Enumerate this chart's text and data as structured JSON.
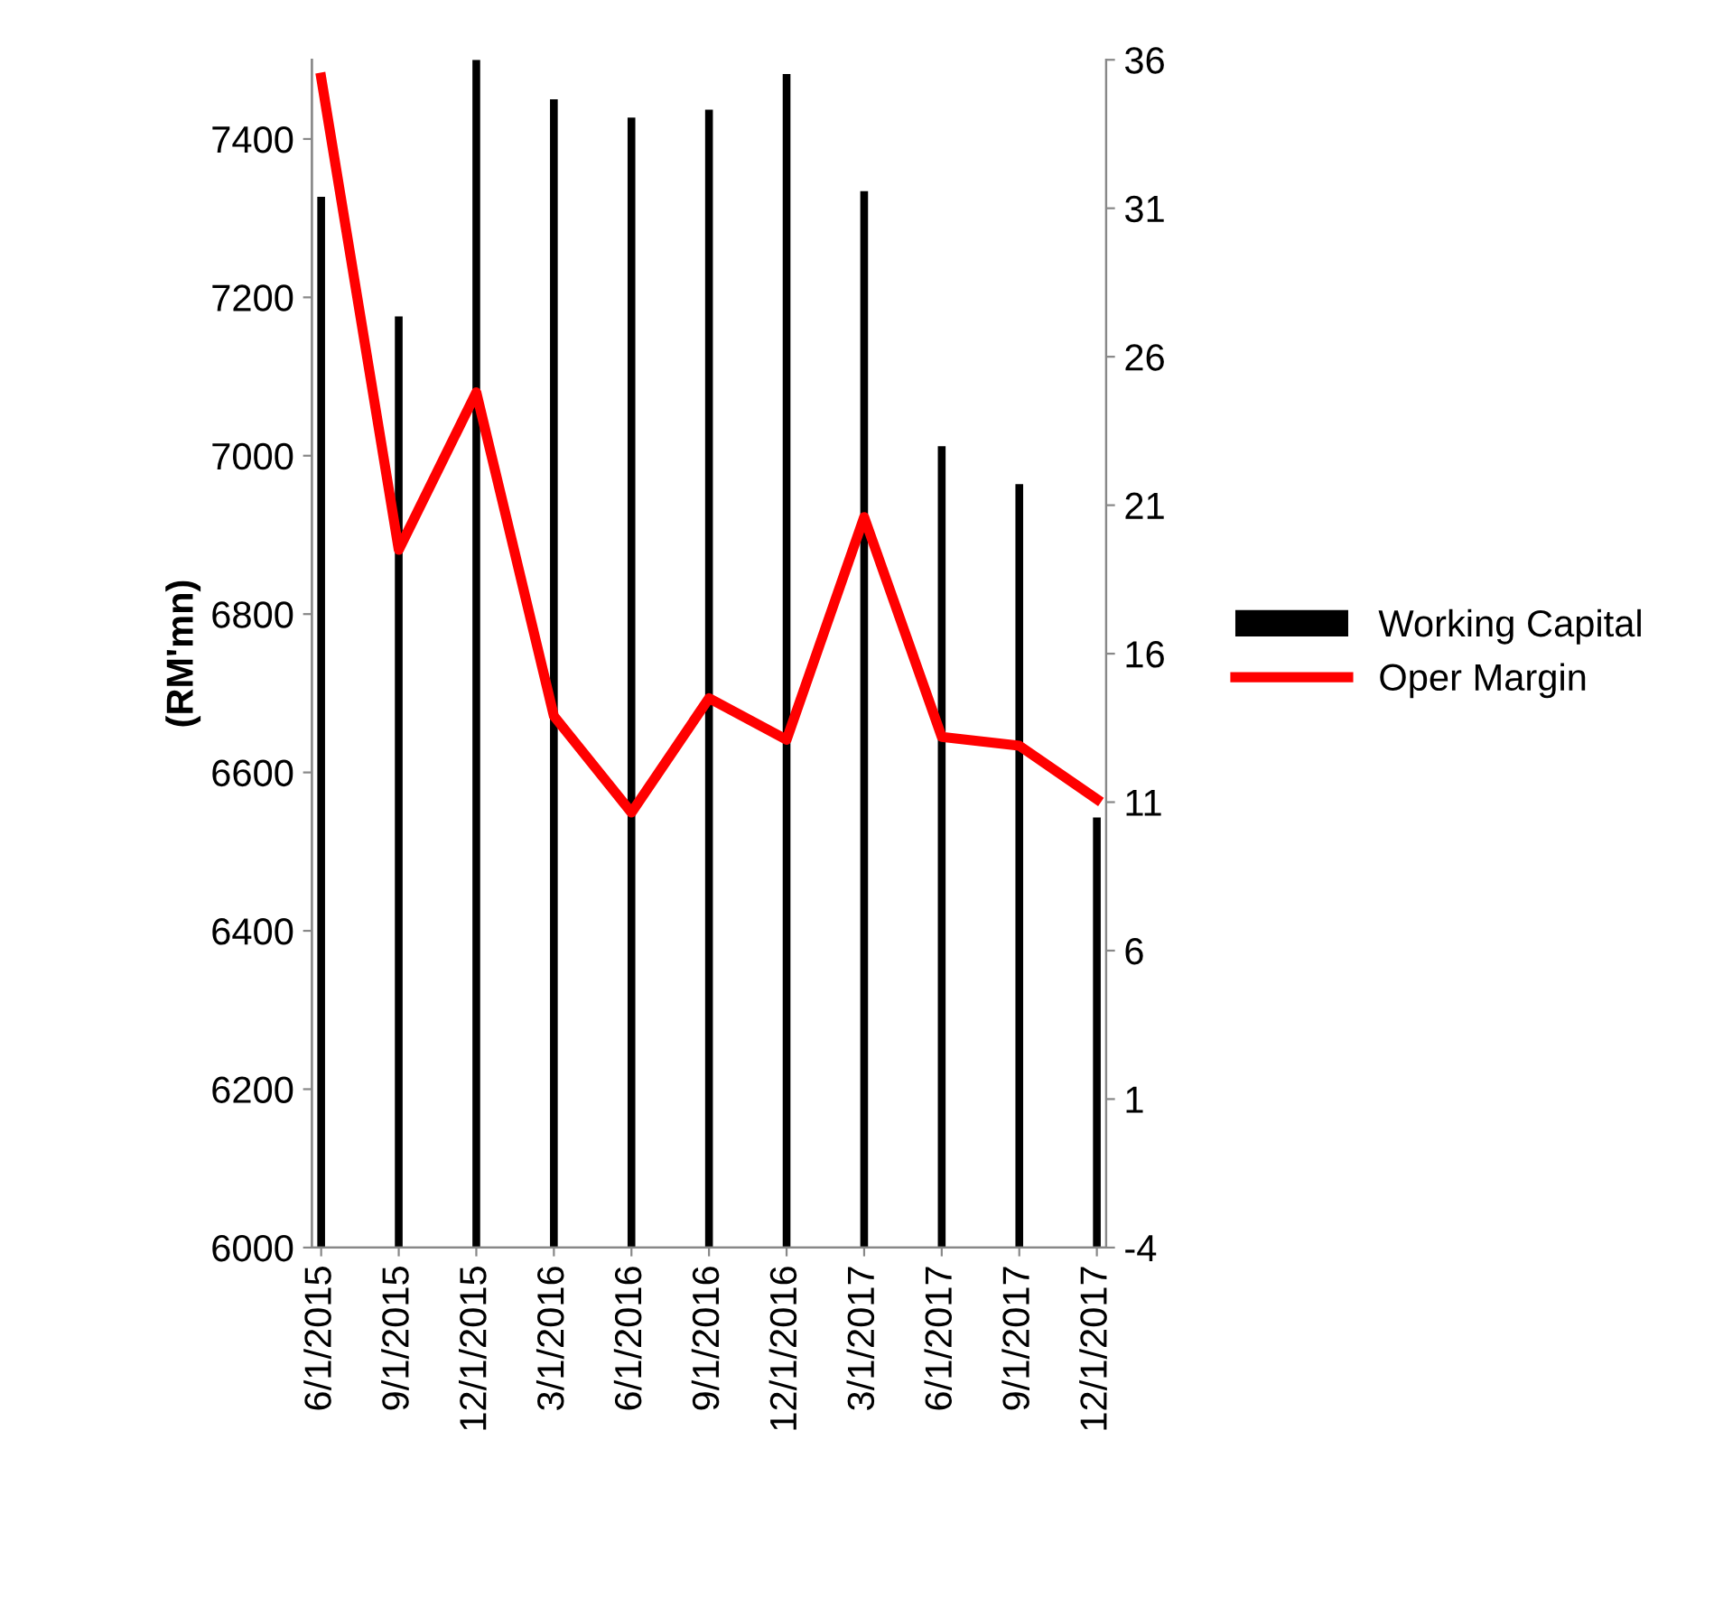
{
  "chart_data": {
    "type": "bar",
    "ylabel": "(RM'mn)",
    "categories": [
      "6/1/2015",
      "9/1/2015",
      "12/1/2015",
      "3/1/2016",
      "6/1/2016",
      "9/1/2016",
      "12/1/2016",
      "3/1/2017",
      "6/1/2017",
      "9/1/2017",
      "12/1/2017"
    ],
    "series": [
      {
        "name": "Working Capital",
        "color": "#000000",
        "values": [
          7327,
          7176,
          7500,
          7450,
          7427,
          7437,
          7482,
          7334,
          7012,
          6964,
          6543
        ]
      },
      {
        "name": "Oper Margin",
        "type": "line",
        "axis": "y2",
        "color": "#ff0000",
        "values": [
          35.4,
          19.5,
          24.8,
          13.9,
          10.65,
          14.5,
          13.1,
          20.6,
          13.2,
          12.9,
          11.1
        ]
      }
    ],
    "ylim": [
      6000,
      7500
    ],
    "yticks": [
      6000,
      6200,
      6400,
      6600,
      6800,
      7000,
      7200,
      7400
    ],
    "y2lim": [
      -4,
      36
    ],
    "y2ticks": [
      -4,
      1,
      6,
      11,
      16,
      21,
      26,
      31,
      36
    ],
    "grid": false,
    "legend": "right",
    "marker": "none",
    "line_style": "solid"
  }
}
